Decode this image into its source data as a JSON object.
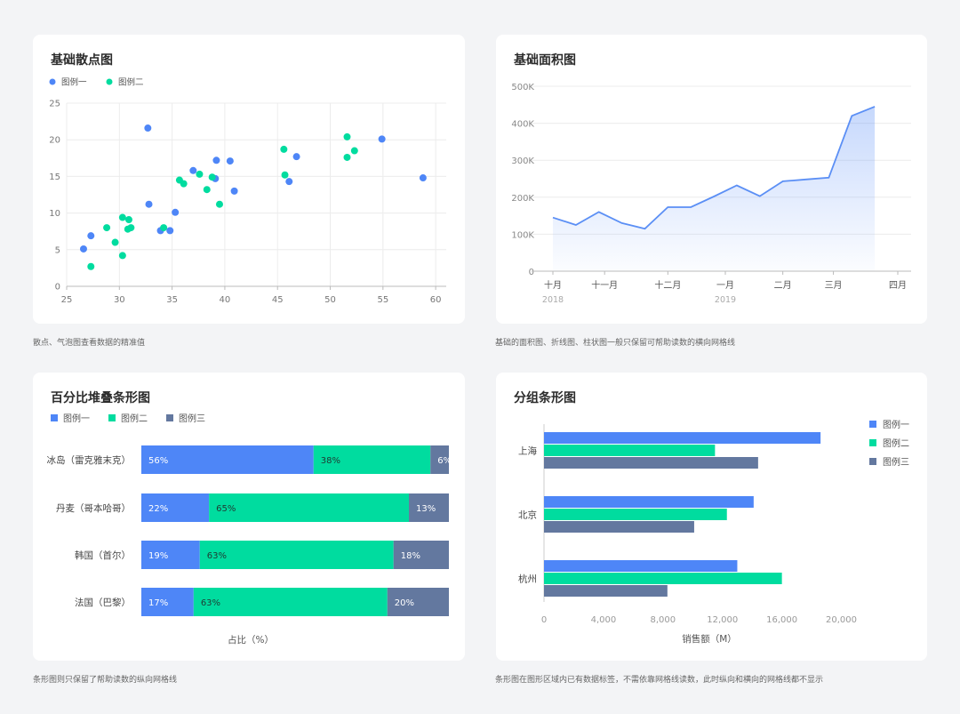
{
  "colors": {
    "blue": "#4e86f7",
    "green": "#00dc9f",
    "slate": "#63789f",
    "area_line": "#5b8ff5"
  },
  "scatter": {
    "title": "基础散点图",
    "caption": "散点、气泡图查看数据的精准值",
    "legend": [
      "图例一",
      "图例二"
    ],
    "chart_data": {
      "type": "scatter",
      "xlim": [
        25,
        61
      ],
      "ylim": [
        0,
        25
      ],
      "x_ticks": [
        25,
        30,
        35,
        40,
        45,
        50,
        55,
        60
      ],
      "y_ticks": [
        0,
        5,
        10,
        15,
        20,
        25
      ],
      "series": [
        {
          "name": "图例一",
          "points": [
            [
              26.6,
              5.1
            ],
            [
              27.3,
              6.9
            ],
            [
              32.7,
              21.6
            ],
            [
              32.8,
              11.2
            ],
            [
              33.9,
              7.6
            ],
            [
              34.8,
              7.6
            ],
            [
              35.3,
              10.1
            ],
            [
              37.0,
              15.8
            ],
            [
              39.1,
              14.7
            ],
            [
              39.2,
              17.2
            ],
            [
              40.5,
              17.1
            ],
            [
              40.9,
              13.0
            ],
            [
              46.1,
              14.3
            ],
            [
              46.8,
              17.7
            ],
            [
              54.9,
              20.1
            ],
            [
              58.8,
              14.8
            ]
          ]
        },
        {
          "name": "图例二",
          "points": [
            [
              27.3,
              2.7
            ],
            [
              28.8,
              8.0
            ],
            [
              29.6,
              6.0
            ],
            [
              30.3,
              9.4
            ],
            [
              30.3,
              4.2
            ],
            [
              30.8,
              7.8
            ],
            [
              30.9,
              9.1
            ],
            [
              31.1,
              8.0
            ],
            [
              34.2,
              8.0
            ],
            [
              35.7,
              14.5
            ],
            [
              36.1,
              14.0
            ],
            [
              37.6,
              15.3
            ],
            [
              38.3,
              13.2
            ],
            [
              38.8,
              14.9
            ],
            [
              39.5,
              11.2
            ],
            [
              45.6,
              18.7
            ],
            [
              45.7,
              15.2
            ],
            [
              51.6,
              20.4
            ],
            [
              51.6,
              17.6
            ],
            [
              52.3,
              18.5
            ]
          ]
        }
      ]
    }
  },
  "area": {
    "title": "基础面积图",
    "caption": "基础的面积图、折线图、柱状图一般只保留可帮助读数的横向网格线",
    "chart_data": {
      "type": "area",
      "ylim": [
        0,
        500000
      ],
      "y_ticks": [
        "0",
        "100K",
        "200K",
        "300K",
        "400K",
        "500K"
      ],
      "x": [
        0,
        1,
        2,
        3,
        4,
        5,
        6,
        7,
        8,
        9,
        10,
        11,
        12,
        13,
        14
      ],
      "values": [
        145000,
        125000,
        160000,
        130000,
        115000,
        173000,
        173000,
        202000,
        232000,
        203000,
        243000,
        248000,
        253000,
        420000,
        445000
      ],
      "x_labels": [
        {
          "i": 0,
          "label": "十月",
          "sub": "2018"
        },
        {
          "i": 2.25,
          "label": "十一月",
          "sub": ""
        },
        {
          "i": 5,
          "label": "十二月",
          "sub": ""
        },
        {
          "i": 7.5,
          "label": "一月",
          "sub": "2019"
        },
        {
          "i": 10,
          "label": "二月",
          "sub": ""
        },
        {
          "i": 12.2,
          "label": "三月",
          "sub": ""
        },
        {
          "i": 15,
          "label": "四月",
          "sub": ""
        }
      ],
      "x_max": 15
    }
  },
  "stacked": {
    "title": "百分比堆叠条形图",
    "caption": "条形图则只保留了帮助读数的纵向网格线",
    "legend": [
      "图例一",
      "图例二",
      "图例三"
    ],
    "xlabel": "占比（%）",
    "chart_data": {
      "type": "bar",
      "categories": [
        "冰岛（雷克雅末克）",
        "丹麦（哥本哈哥）",
        "韩国（首尔）",
        "法国（巴黎）"
      ],
      "series": [
        {
          "name": "图例一",
          "values": [
            56,
            22,
            19,
            17
          ]
        },
        {
          "name": "图例二",
          "values": [
            38,
            65,
            63,
            63
          ]
        },
        {
          "name": "图例三",
          "values": [
            6,
            13,
            18,
            20
          ]
        }
      ],
      "labels": [
        [
          "56%",
          "38%",
          "6%"
        ],
        [
          "22%",
          "65%",
          "13%"
        ],
        [
          "19%",
          "63%",
          "18%"
        ],
        [
          "17%",
          "63%",
          "20%"
        ]
      ]
    }
  },
  "grouped": {
    "title": "分组条形图",
    "caption": "条形图在图形区域内已有数据标签，不需依靠网格线读数，此时纵向和横向的网格线都不显示",
    "legend": [
      "图例一",
      "图例二",
      "图例三"
    ],
    "xlabel": "销售额（M）",
    "chart_data": {
      "type": "bar",
      "categories": [
        "上海",
        "北京",
        "杭州"
      ],
      "xlim": [
        0,
        22000
      ],
      "x_ticks": [
        "0",
        "4,000",
        "8,000",
        "12,000",
        "16,000",
        "20,000"
      ],
      "series": [
        {
          "name": "图例一",
          "values": [
            18600,
            14100,
            13000
          ]
        },
        {
          "name": "图例二",
          "values": [
            11500,
            12300,
            16000
          ]
        },
        {
          "name": "图例三",
          "values": [
            14400,
            10100,
            8300
          ]
        }
      ]
    }
  }
}
